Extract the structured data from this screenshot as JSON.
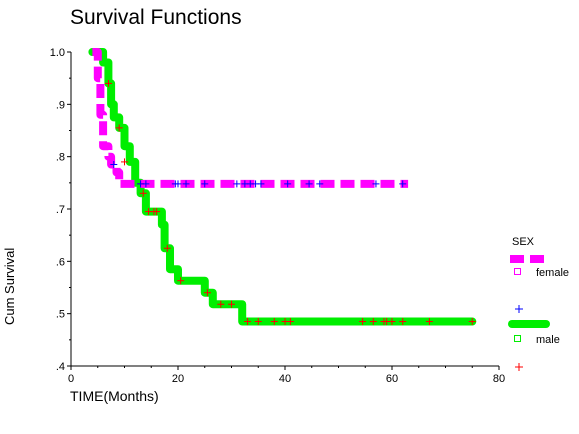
{
  "colors": {
    "female_line": "#ff00ff",
    "male_line": "#00ee00",
    "female_censor": "#0000ff",
    "male_censor": "#ff0000",
    "axis": "#000000"
  },
  "chart_data": {
    "type": "line",
    "title": "Survival Functions",
    "xlabel": "TIME(Months)",
    "ylabel": "Cum Survival",
    "xlim": [
      0,
      80
    ],
    "ylim": [
      0.4,
      1.0
    ],
    "x_ticks": [
      "0",
      "20",
      "40",
      "60",
      "80"
    ],
    "y_ticks": [
      "1.0",
      ".9",
      ".8",
      ".7",
      ".6",
      ".5",
      ".4"
    ],
    "legend": {
      "title": "SEX",
      "position": "right",
      "entries": [
        "female",
        "male"
      ]
    },
    "series": [
      {
        "name": "female",
        "line_style": "dashed",
        "steps": [
          [
            4,
            1.0
          ],
          [
            5,
            0.95
          ],
          [
            5.5,
            0.88
          ],
          [
            6,
            0.82
          ],
          [
            7,
            0.8
          ],
          [
            7.5,
            0.785
          ],
          [
            8.5,
            0.77
          ],
          [
            9,
            0.748
          ],
          [
            63,
            0.748
          ]
        ],
        "censored": [
          [
            8,
            0.785
          ],
          [
            13,
            0.748
          ],
          [
            14,
            0.748
          ],
          [
            19.5,
            0.748
          ],
          [
            20,
            0.748
          ],
          [
            21.5,
            0.748
          ],
          [
            25,
            0.748
          ],
          [
            31,
            0.748
          ],
          [
            32.5,
            0.748
          ],
          [
            33.5,
            0.748
          ],
          [
            34.5,
            0.748
          ],
          [
            35.5,
            0.748
          ],
          [
            40.5,
            0.748
          ],
          [
            44.5,
            0.748
          ],
          [
            46.5,
            0.748
          ],
          [
            57,
            0.748
          ],
          [
            62,
            0.748
          ]
        ]
      },
      {
        "name": "male",
        "line_style": "solid",
        "steps": [
          [
            4,
            1.0
          ],
          [
            6,
            0.98
          ],
          [
            7,
            0.94
          ],
          [
            7.5,
            0.9
          ],
          [
            8,
            0.875
          ],
          [
            9,
            0.855
          ],
          [
            10,
            0.82
          ],
          [
            11,
            0.79
          ],
          [
            12,
            0.75
          ],
          [
            13,
            0.73
          ],
          [
            14,
            0.695
          ],
          [
            17,
            0.67
          ],
          [
            17.5,
            0.625
          ],
          [
            18.5,
            0.585
          ],
          [
            20,
            0.563
          ],
          [
            25,
            0.54
          ],
          [
            26.5,
            0.518
          ],
          [
            32,
            0.485
          ],
          [
            75,
            0.485
          ]
        ],
        "censored": [
          [
            7,
            0.94
          ],
          [
            9,
            0.855
          ],
          [
            10,
            0.79
          ],
          [
            13,
            0.748
          ],
          [
            13.5,
            0.73
          ],
          [
            14.5,
            0.695
          ],
          [
            15.5,
            0.695
          ],
          [
            16,
            0.695
          ],
          [
            18,
            0.625
          ],
          [
            20.5,
            0.563
          ],
          [
            25.5,
            0.54
          ],
          [
            28,
            0.518
          ],
          [
            30,
            0.518
          ],
          [
            33,
            0.485
          ],
          [
            35,
            0.485
          ],
          [
            38,
            0.485
          ],
          [
            40,
            0.485
          ],
          [
            41,
            0.485
          ],
          [
            54.5,
            0.485
          ],
          [
            56.5,
            0.485
          ],
          [
            58.5,
            0.485
          ],
          [
            59,
            0.485
          ],
          [
            60,
            0.485
          ],
          [
            62,
            0.485
          ],
          [
            67,
            0.485
          ],
          [
            75,
            0.485
          ]
        ]
      }
    ]
  }
}
